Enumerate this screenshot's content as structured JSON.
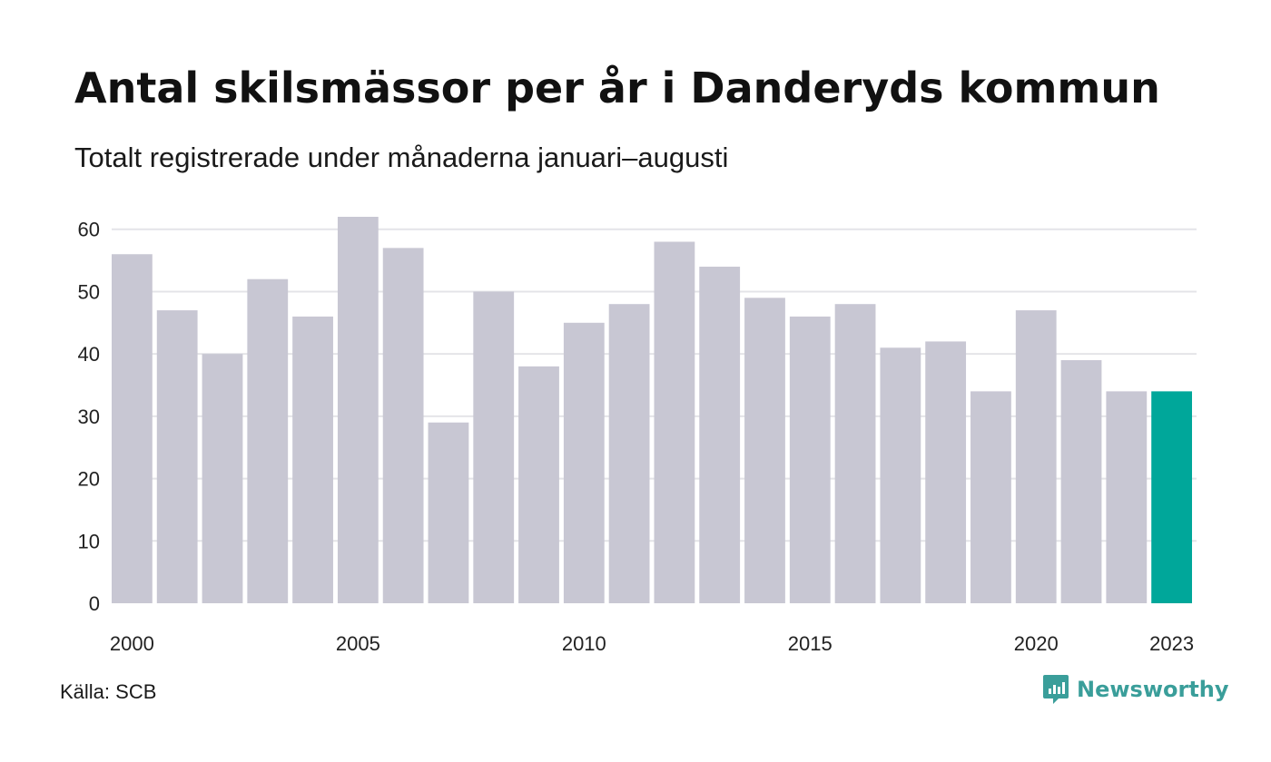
{
  "title": "Antal skilsmässor per år i Danderyds kommun",
  "subtitle": "Totalt registrerade under månaderna januari–augusti",
  "source": "Källa: SCB",
  "brand": {
    "name": "Newsworthy",
    "icon": "newsworthy-logo-icon"
  },
  "colors": {
    "bar": "#c8c7d3",
    "highlight": "#00a79a",
    "grid": "#e4e4e8",
    "brand": "#3a9e9a"
  },
  "chart_data": {
    "type": "bar",
    "categories": [
      2000,
      2001,
      2002,
      2003,
      2004,
      2005,
      2006,
      2007,
      2008,
      2009,
      2010,
      2011,
      2012,
      2013,
      2014,
      2015,
      2016,
      2017,
      2018,
      2019,
      2020,
      2021,
      2022,
      2023
    ],
    "values": [
      56,
      47,
      40,
      52,
      46,
      62,
      57,
      29,
      50,
      38,
      45,
      48,
      58,
      54,
      49,
      46,
      48,
      41,
      42,
      34,
      47,
      39,
      34,
      34
    ],
    "highlight_category": 2023,
    "x_tick_labels": [
      "2000",
      "2005",
      "2010",
      "2015",
      "2020",
      "2023"
    ],
    "y_ticks": [
      0,
      10,
      20,
      30,
      40,
      50,
      60
    ],
    "ylim": [
      0,
      62
    ],
    "grid": true,
    "legend": "none"
  }
}
